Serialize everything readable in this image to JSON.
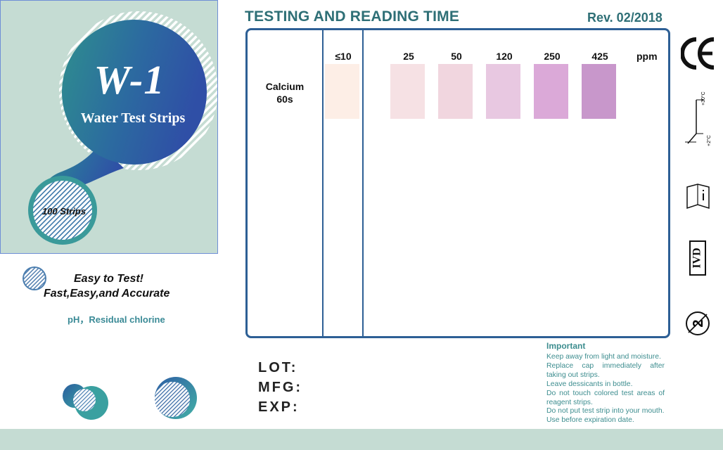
{
  "brand": {
    "product": "W-1",
    "subtitle": "Water Test Strips",
    "count": "100  Strips"
  },
  "tagline": {
    "line1": "Easy to Test!",
    "line2": "Fast,Easy,and Accurate",
    "params": "pH，Residual chlorine"
  },
  "header": {
    "title": "TESTING AND READING TIME",
    "revision": "Rev. 02/2018"
  },
  "chart": {
    "unit": "ppm",
    "test": {
      "name_line1": "Calcium",
      "name_line2": "60s"
    },
    "levels": [
      {
        "label": "≤10",
        "color": "#fdeee6"
      },
      {
        "label": "25",
        "color": "#f6e1e4"
      },
      {
        "label": "50",
        "color": "#f1d6df"
      },
      {
        "label": "120",
        "color": "#e8c8e1"
      },
      {
        "label": "250",
        "color": "#dba9d8"
      },
      {
        "label": "425",
        "color": "#c897cb"
      }
    ]
  },
  "icons": {
    "ce": "ce-mark-icon",
    "temp": "temperature-limit-icon",
    "temp_high": "+30°C",
    "temp_low": "+2°C",
    "manual": "consult-instructions-icon",
    "ivd": "IVD",
    "single_use": "2"
  },
  "lot": {
    "lot_label": "LOT:",
    "mfg_label": "MFG:",
    "exp_label": "EXP:"
  },
  "important": {
    "title": "Important",
    "lines": [
      "Keep away from light and moisture.",
      "Replace cap immediately after taking out strips.",
      "Leave dessicants in bottle.",
      "Do not touch colored test areas of reagent strips.",
      "Do not put test strip into your mouth.",
      "Use before expiration date."
    ]
  },
  "colors": {
    "panel_bg": "#c5dcd3",
    "brand_blue": "#2f5ca8",
    "brand_teal": "#3a9a9a",
    "title_teal": "#2e6f76",
    "frame_blue": "#2d5f95"
  }
}
